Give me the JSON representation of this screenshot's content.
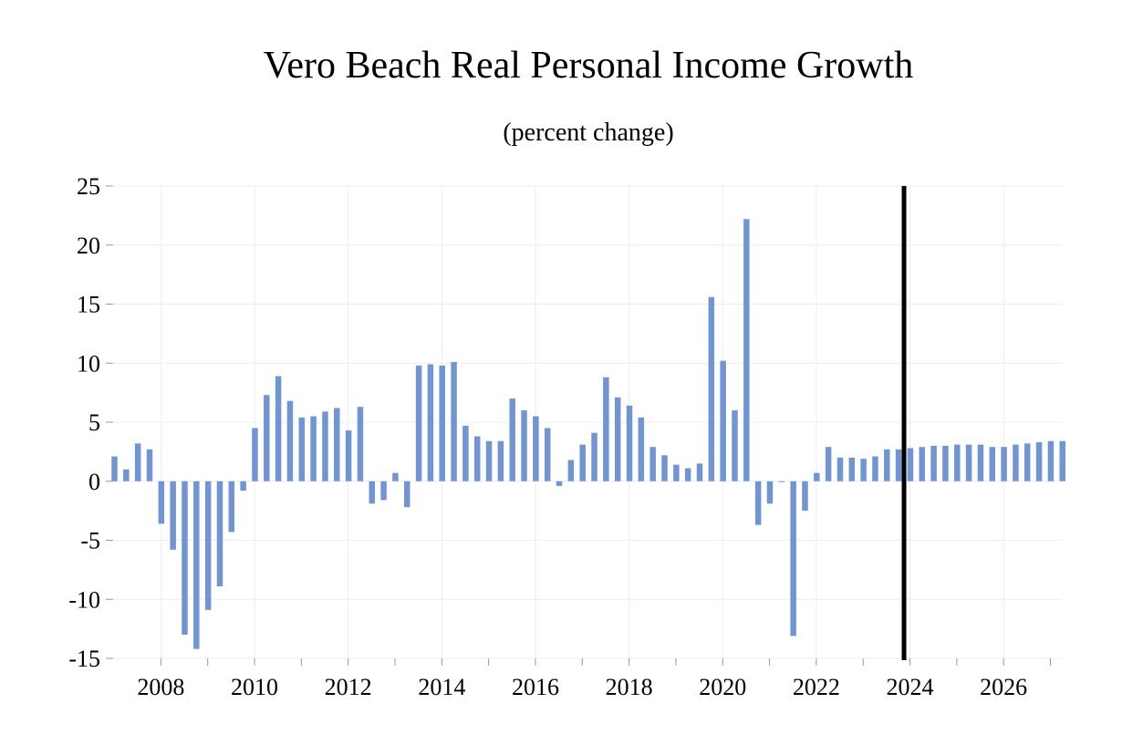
{
  "chart_data": {
    "type": "bar",
    "title": "Vero Beach Real Personal Income Growth",
    "subtitle": "(percent change)",
    "xlabel": "",
    "ylabel": "",
    "ylim": [
      -15,
      25
    ],
    "yticks": [
      25,
      20,
      15,
      10,
      5,
      0,
      -5,
      -10,
      -15
    ],
    "xtick_labels": [
      "2008",
      "2010",
      "2012",
      "2014",
      "2016",
      "2018",
      "2020",
      "2022",
      "2024",
      "2026"
    ],
    "x_start_quarter": "2007 Q1",
    "forecast_marker": "2024 Q1",
    "bar_color": "#7295cf",
    "grid": true,
    "series": [
      {
        "values": [
          2.1,
          1.0,
          3.2,
          2.7,
          -3.6,
          -5.8,
          -13.0,
          -14.2,
          -10.9,
          -8.9,
          -4.3,
          -0.8,
          4.5,
          7.3,
          8.9,
          6.8,
          5.4,
          5.5,
          5.9,
          6.2,
          4.3,
          6.3,
          -1.9,
          -1.6,
          0.7,
          -2.2,
          9.8,
          9.9,
          9.8,
          10.1,
          4.7,
          3.8,
          3.4,
          3.4,
          7.0,
          6.0,
          5.5,
          4.5,
          -0.4,
          1.8,
          3.1,
          4.1,
          8.8,
          7.1,
          6.4,
          5.4,
          2.9,
          2.2,
          1.4,
          1.1,
          1.5,
          15.6,
          10.2,
          6.0,
          22.2,
          -3.7,
          -1.9,
          0.0,
          -13.1,
          -2.5,
          0.7,
          2.9,
          2.0,
          2.0,
          1.9,
          2.1,
          2.7,
          2.7,
          2.8,
          2.9,
          3.0,
          3.0,
          3.1,
          3.1,
          3.1,
          2.9,
          2.9,
          3.1,
          3.2,
          3.3,
          3.4,
          3.4
        ]
      }
    ]
  }
}
